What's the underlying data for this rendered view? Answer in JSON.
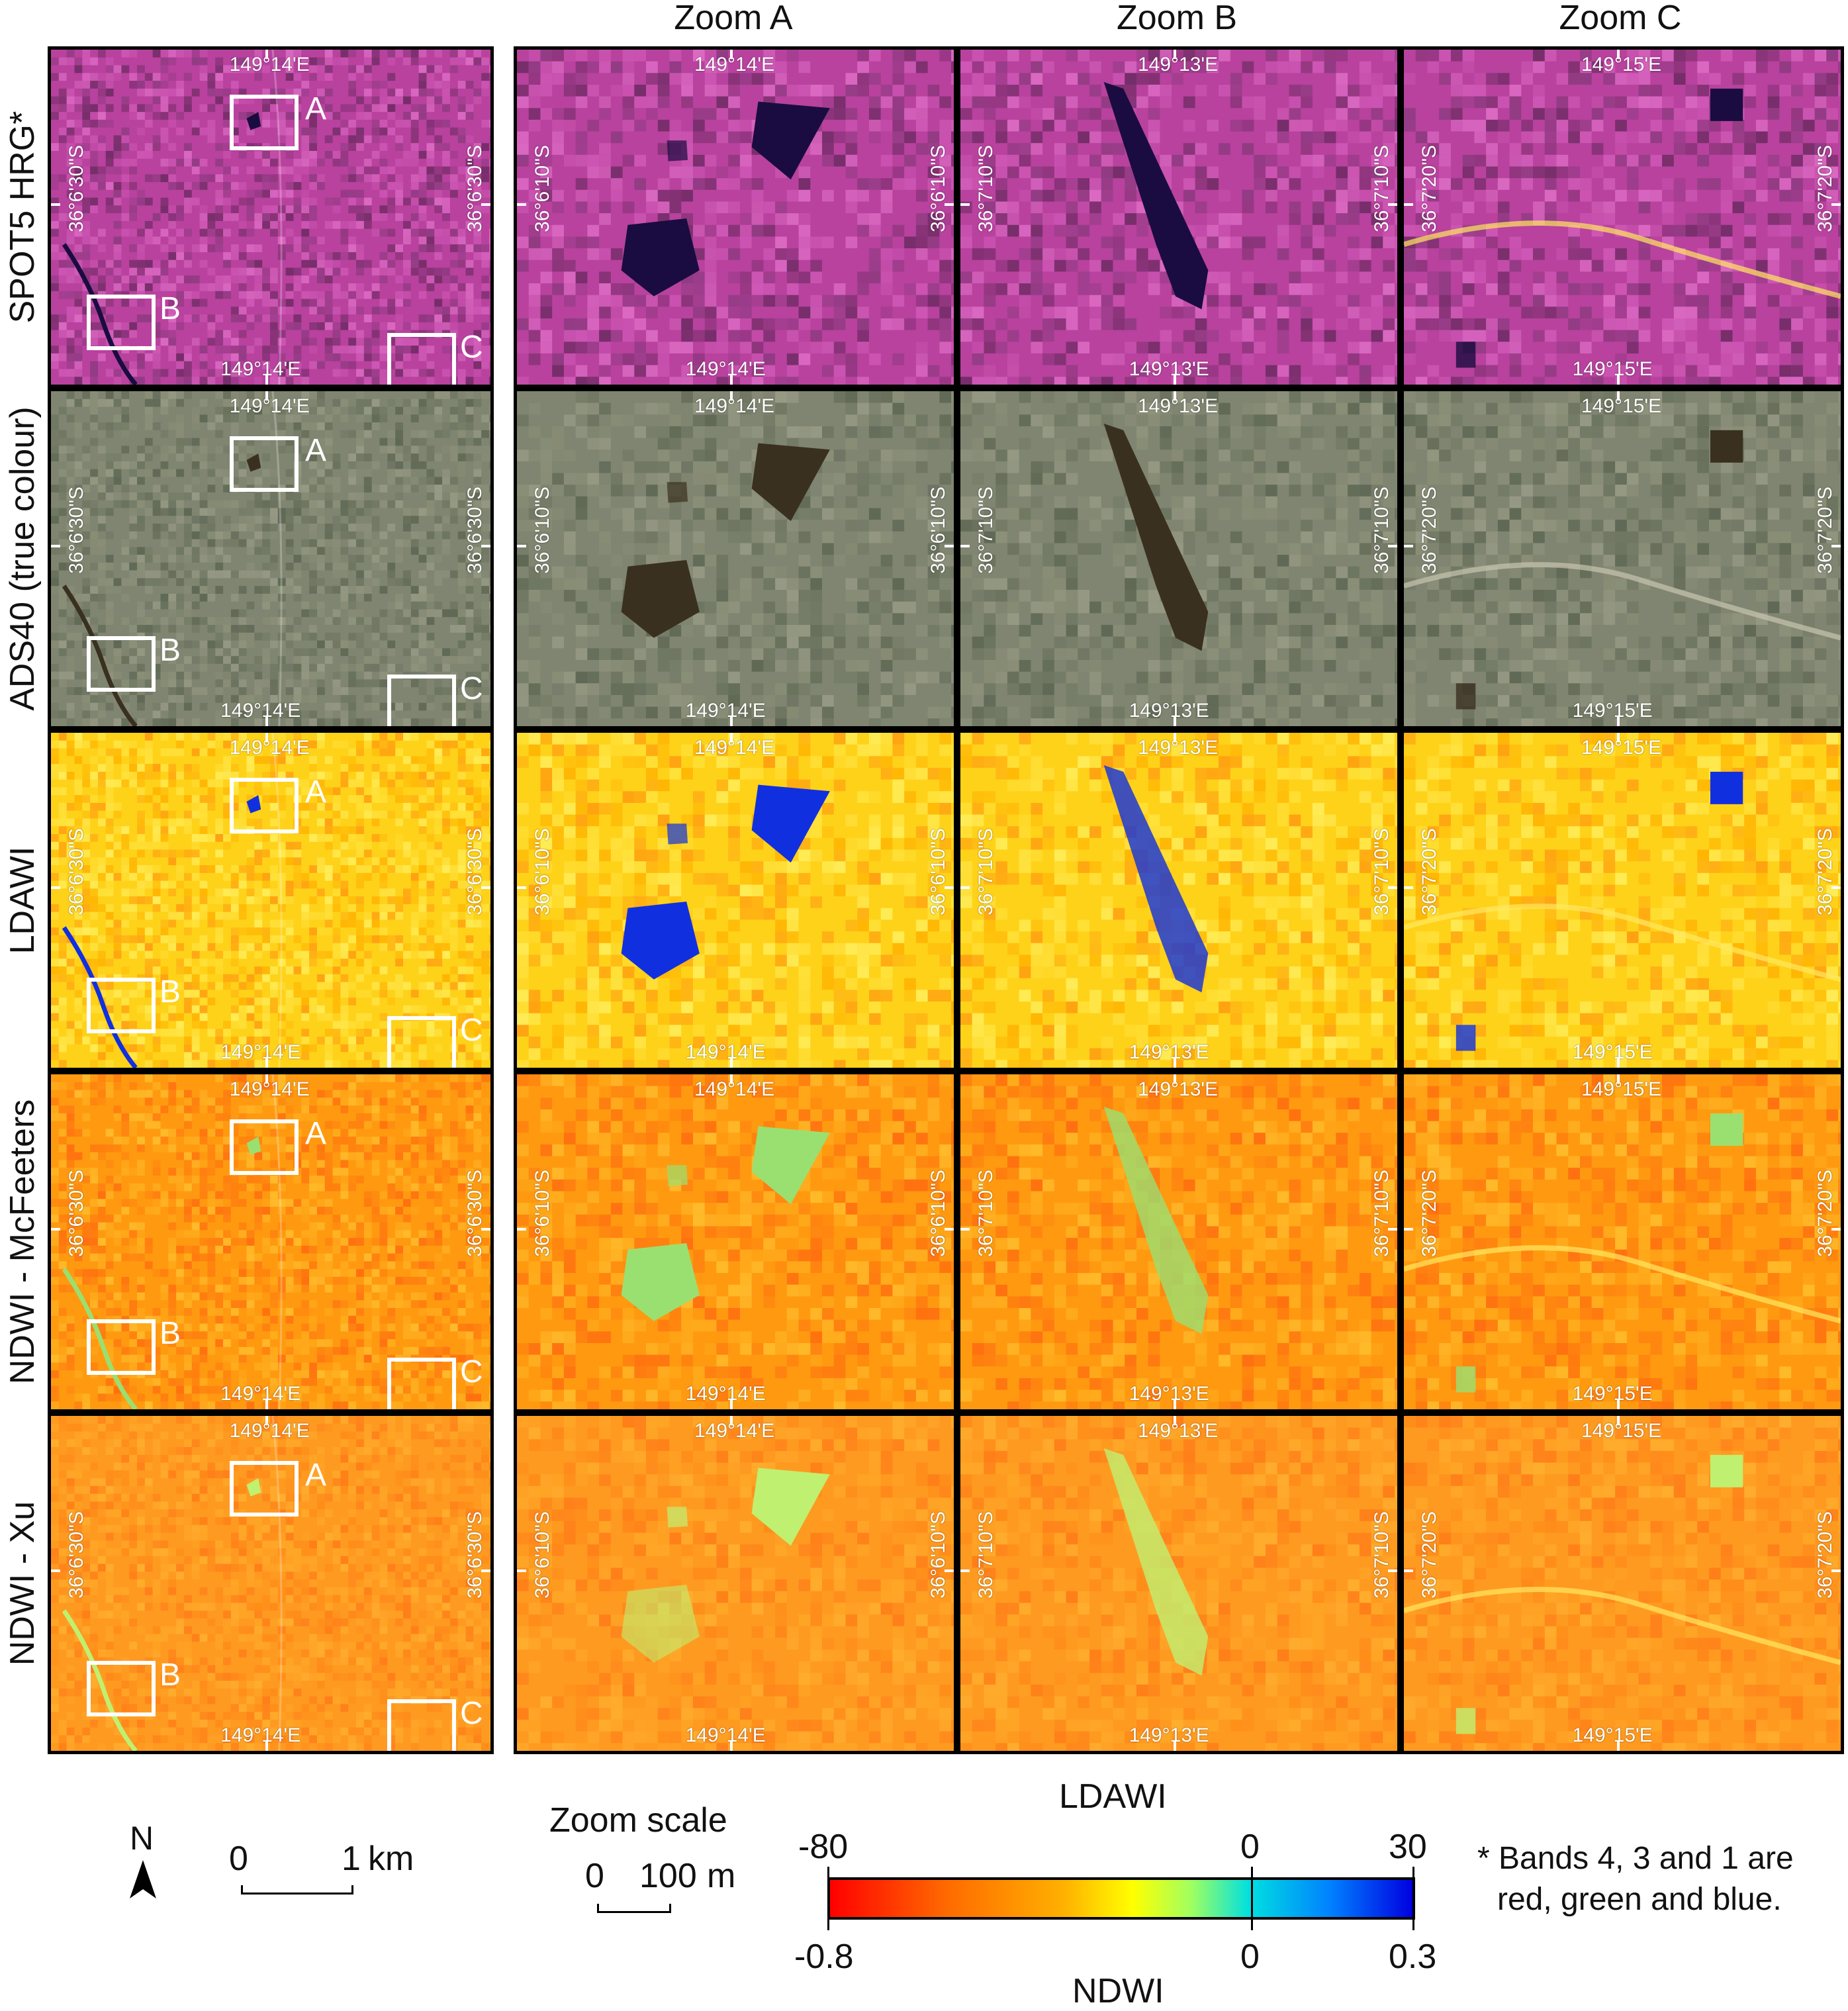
{
  "columns": [
    "Zoom A",
    "Zoom B",
    "Zoom C"
  ],
  "rows": [
    {
      "label": "SPOT5 HRG*",
      "palette": "falsecolor"
    },
    {
      "label": "ADS40 (true colour)",
      "palette": "truecolor"
    },
    {
      "label": "LDAWI",
      "palette": "index_strong"
    },
    {
      "label": "NDWI - McFeeters",
      "palette": "index_mid"
    },
    {
      "label": "NDWI - Xu",
      "palette": "index_weak"
    }
  ],
  "overview": {
    "lon_top": "149°14'E",
    "lon_bottom": "149°14'E",
    "lat_left": "36°6'30\"S",
    "lat_right": "36°6'30\"S",
    "boxes": [
      "A",
      "B",
      "C"
    ]
  },
  "zooms": [
    {
      "lon_top": "149°14'E",
      "lon_bottom": "149°14'E",
      "lat_left": "36°6'10\"S",
      "lat_right": "36°6'10\"S"
    },
    {
      "lon_top": "149°13'E",
      "lon_bottom": "149°13'E",
      "lat_left": "36°7'10\"S",
      "lat_right": "36°7'10\"S"
    },
    {
      "lon_top": "149°15'E",
      "lon_bottom": "149°15'E",
      "lat_left": "36°7'20\"S",
      "lat_right": "36°7'20\"S"
    }
  ],
  "legend": {
    "north": "N",
    "overview_scale": {
      "zero": "0",
      "end": "1",
      "unit": "km"
    },
    "zoom_scale": {
      "title": "Zoom scale",
      "zero": "0",
      "end": "100",
      "unit": "m"
    },
    "colorbar": {
      "top_label": "LDAWI",
      "top_ticks": [
        "-80",
        "0",
        "30"
      ],
      "bottom_ticks": [
        "-0.8",
        "0",
        "0.3"
      ],
      "bottom_label": "NDWI"
    },
    "footnote_line1": "* Bands 4, 3 and 1 are",
    "footnote_line2": "red, green and blue."
  },
  "colors": {
    "falsecolor": [
      "#b8429e",
      "#d25ab8",
      "#8a3a7e",
      "#e070c8",
      "#6a2a60"
    ],
    "truecolor": [
      "#7f8570",
      "#6c7460",
      "#9a9c86",
      "#5a6450",
      "#8c9078"
    ],
    "index_strong": [
      "#ffd21a",
      "#ffb000",
      "#ffe440",
      "#ff9a10",
      "#fff060"
    ],
    "index_mid": [
      "#ff9a10",
      "#ff7a10",
      "#ffb020",
      "#ff6a10",
      "#ffc030"
    ],
    "index_weak": [
      "#ff9a20",
      "#ff8a18",
      "#ffa828",
      "#ff7a18",
      "#ffb030"
    ],
    "water_false": "#1a0c40",
    "water_true": "#3a3020",
    "water_strong": "#1030e0",
    "water_mid": "#9ae070",
    "water_weak": "#c0f070"
  }
}
